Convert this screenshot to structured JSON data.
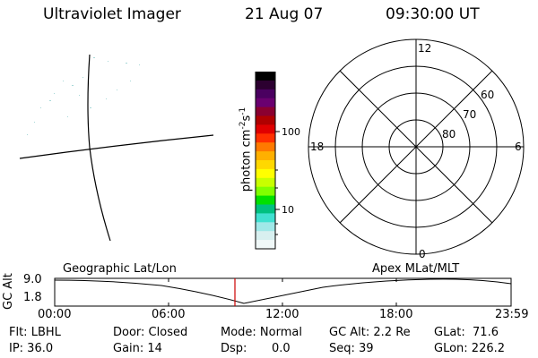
{
  "header": {
    "title": "Ultraviolet Imager",
    "date": "21 Aug 07",
    "time": "09:30:00 UT"
  },
  "colorbar": {
    "label_base": "photon cm",
    "label_exp1": "-2",
    "label_mid": "s",
    "label_exp2": "-1",
    "tick_100": "100",
    "tick_10": "10",
    "colors": [
      "#000000",
      "#2c0030",
      "#4a0060",
      "#6a0070",
      "#8a0030",
      "#b00000",
      "#e00000",
      "#ff3000",
      "#ff7a00",
      "#ffb000",
      "#ffd800",
      "#ffff00",
      "#c8ff00",
      "#80ff00",
      "#00e000",
      "#00c080",
      "#40e0d0",
      "#a0e8e8",
      "#d8f0f0",
      "#f0f8f8"
    ]
  },
  "polar": {
    "mlt_12": "12",
    "mlt_18": "18",
    "mlt_6": "6",
    "mlt_0": "0",
    "lat_60": "60",
    "lat_70": "70",
    "lat_80": "80"
  },
  "timeline": {
    "left_label": "Geographic Lat/Lon",
    "right_label": "Apex MLat/MLT",
    "axis_label": "GC Alt",
    "y_top": "9.0",
    "y_bottom": "1.8",
    "ticks": [
      "00:00",
      "06:00",
      "12:00",
      "18:00",
      "23:59"
    ]
  },
  "footer": {
    "flt": "Flt: LBHL",
    "ip": "IP: 36.0",
    "door": "Door: Closed",
    "gain": "Gain: 14",
    "mode": "Mode: Normal",
    "dsp_label": "Dsp:",
    "dsp_value": "0.0",
    "gc_alt": "GC Alt: 2.2 Re",
    "seq": "Seq: 39",
    "glat": "GLat:  71.6",
    "glon": "GLon: 226.2"
  }
}
